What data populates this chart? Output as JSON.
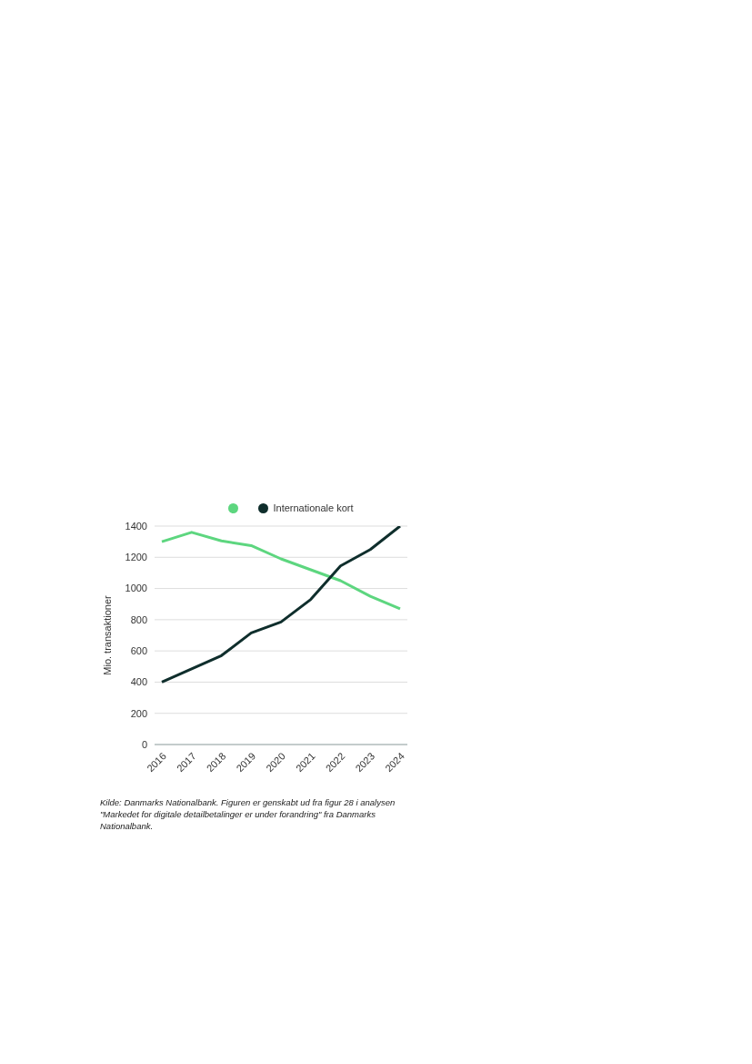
{
  "chart_data": {
    "type": "line",
    "categories": [
      "2016",
      "2017",
      "2018",
      "2019",
      "2020",
      "2021",
      "2022",
      "2023",
      "2024"
    ],
    "series": [
      {
        "color": "#5dd67f",
        "values": [
          1300,
          1360,
          1305,
          1275,
          1190,
          1120,
          1050,
          950,
          870
        ]
      },
      {
        "name": "Internationale kort",
        "color": "#0f2e2c",
        "values": [
          400,
          485,
          570,
          715,
          785,
          930,
          1145,
          1250,
          1400
        ]
      }
    ],
    "ylabel": "Mio. transaktioner",
    "ylim": [
      0,
      1400
    ],
    "yticks": [
      0,
      200,
      400,
      600,
      800,
      1000,
      1200,
      1400
    ],
    "grid": "y",
    "legend": "top",
    "marker": "none",
    "line_style": "solid",
    "annotations": [
      "Kilde: Danmarks Nationalbank. Figuren er genskabt ud fra figur 28 i analysen \"Markedet for digitale detailbetalinger er under forandring\" fra Danmarks Nationalbank."
    ]
  }
}
